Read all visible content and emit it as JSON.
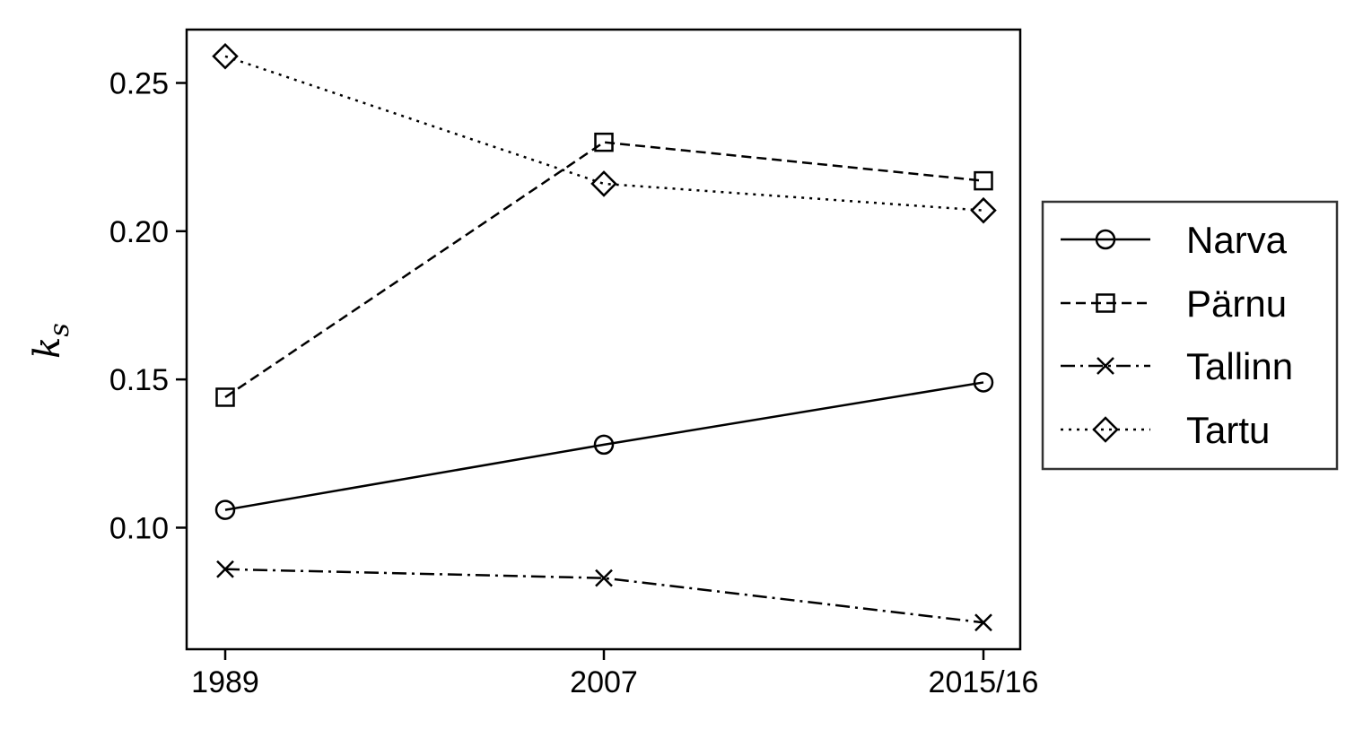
{
  "chart_data": {
    "type": "line",
    "categories": [
      "1989",
      "2007",
      "2015/16"
    ],
    "ylabel": "k",
    "ylabel_subscript": "s",
    "xlabel": "",
    "title": "",
    "ylim": [
      0.059,
      0.268
    ],
    "yticks": [
      0.1,
      0.15,
      0.2,
      0.25
    ],
    "ytick_labels": [
      "0.10",
      "0.15",
      "0.20",
      "0.25"
    ],
    "grid": false,
    "legend_position": "right",
    "series": [
      {
        "name": "Narva",
        "values": [
          0.106,
          0.128,
          0.149
        ],
        "marker": "circle",
        "dash": "solid",
        "color": "#000000"
      },
      {
        "name": "Pärnu",
        "values": [
          0.144,
          0.23,
          0.217
        ],
        "marker": "square",
        "dash": "dashed",
        "color": "#000000"
      },
      {
        "name": "Tallinn",
        "values": [
          0.086,
          0.083,
          0.068
        ],
        "marker": "x",
        "dash": "dashdot",
        "color": "#000000"
      },
      {
        "name": "Tartu",
        "values": [
          0.259,
          0.216,
          0.207
        ],
        "marker": "diamond",
        "dash": "dotted",
        "color": "#000000"
      }
    ]
  }
}
